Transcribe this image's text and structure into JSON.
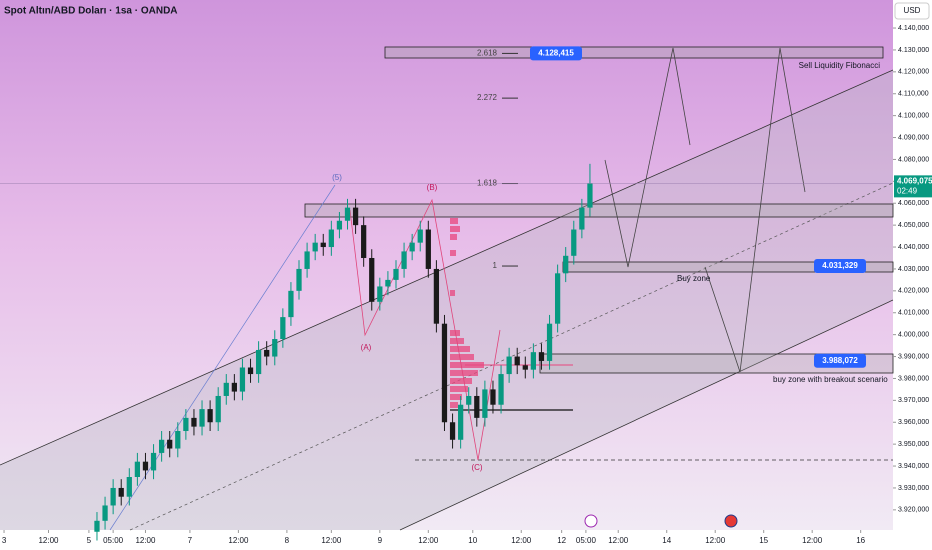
{
  "chart_data": {
    "type": "candlestick",
    "title": "Spot Altın/ABD Doları · 1sa · OANDA",
    "currency": "USD",
    "up_color": "#089981",
    "down_color": "#1a1a1a",
    "xlim": [
      0,
      221
    ],
    "ylim": [
      3910800,
      4152800
    ],
    "xticks": [
      {
        "value": 1,
        "label": "3"
      },
      {
        "value": 12,
        "label": "12:00"
      },
      {
        "value": 22,
        "label": "5"
      },
      {
        "value": 28,
        "label": "05:00"
      },
      {
        "value": 36,
        "label": "12:00"
      },
      {
        "value": 47,
        "label": "7"
      },
      {
        "value": 59,
        "label": "12:00"
      },
      {
        "value": 71,
        "label": "8"
      },
      {
        "value": 82,
        "label": "12:00"
      },
      {
        "value": 94,
        "label": "9"
      },
      {
        "value": 106,
        "label": "12:00"
      },
      {
        "value": 117,
        "label": "10"
      },
      {
        "value": 129,
        "label": "12:00"
      },
      {
        "value": 139,
        "label": "12"
      },
      {
        "value": 145,
        "label": "05:00"
      },
      {
        "value": 153,
        "label": "12:00"
      },
      {
        "value": 165,
        "label": "14"
      },
      {
        "value": 177,
        "label": "12:00"
      },
      {
        "value": 189,
        "label": "15"
      },
      {
        "value": 201,
        "label": "12:00"
      },
      {
        "value": 213,
        "label": "16"
      }
    ],
    "yticks": [
      {
        "value": 4140000,
        "label": "4.140,000"
      },
      {
        "value": 4130000,
        "label": "4.130,000"
      },
      {
        "value": 4120000,
        "label": "4.120,000"
      },
      {
        "value": 4110000,
        "label": "4.110,000"
      },
      {
        "value": 4100000,
        "label": "4.100,000"
      },
      {
        "value": 4090000,
        "label": "4.090,000"
      },
      {
        "value": 4080000,
        "label": "4.080,000"
      },
      {
        "value": 4070000,
        "label": "4.070,000"
      },
      {
        "value": 4060000,
        "label": "4.060,000"
      },
      {
        "value": 4050000,
        "label": "4.050,000"
      },
      {
        "value": 4040000,
        "label": "4.040,000"
      },
      {
        "value": 4030000,
        "label": "4.030,000"
      },
      {
        "value": 4020000,
        "label": "4.020,000"
      },
      {
        "value": 4010000,
        "label": "4.010,000"
      },
      {
        "value": 4000000,
        "label": "4.000,000"
      },
      {
        "value": 3990000,
        "label": "3.990,000"
      },
      {
        "value": 3980000,
        "label": "3.980,000"
      },
      {
        "value": 3970000,
        "label": "3.970,000"
      },
      {
        "value": 3960000,
        "label": "3.960,000"
      },
      {
        "value": 3950000,
        "label": "3.950,000"
      },
      {
        "value": 3940000,
        "label": "3.940,000"
      },
      {
        "value": 3930000,
        "label": "3.930,000"
      },
      {
        "value": 3920000,
        "label": "3.920,000"
      }
    ],
    "last_price": {
      "value": 4069075,
      "label": "4.069,075"
    },
    "countdown": "02:49",
    "price_tags": [
      {
        "value": 4128415,
        "label": "4.128,415"
      },
      {
        "value": 4031329,
        "label": "4.031,329"
      },
      {
        "value": 3988072,
        "label": "3.988,072"
      }
    ],
    "fib_levels": [
      {
        "value": 4128415,
        "label": "2.618"
      },
      {
        "value": 4108000,
        "label": "2.272"
      },
      {
        "value": 4069000,
        "label": "1.618"
      },
      {
        "value": 4031329,
        "label": "1"
      }
    ],
    "annotations": {
      "wave5": "(5)",
      "waveB": "(B)",
      "waveA": "(A)",
      "waveC": "(C)",
      "sell": "Sell Liquidity Fibonacci",
      "buy": "Buy zone",
      "breakout": "buy zone with breakout scenario"
    },
    "x": [
      24,
      26,
      28,
      30,
      32,
      34,
      36,
      38,
      40,
      42,
      44,
      46,
      48,
      50,
      52,
      54,
      56,
      58,
      60,
      62,
      64,
      66,
      68,
      70,
      72,
      74,
      76,
      78,
      80,
      82,
      84,
      86,
      88,
      90,
      92,
      94,
      96,
      98,
      100,
      102,
      104,
      106,
      108,
      110,
      112,
      114,
      116,
      118,
      120,
      122,
      124,
      126,
      128,
      130,
      132,
      134,
      136,
      138,
      140,
      142,
      144,
      146
    ],
    "ohlc": [
      [
        3910000,
        3919000,
        3906000,
        3915000
      ],
      [
        3915000,
        3926000,
        3911000,
        3922000
      ],
      [
        3922000,
        3934000,
        3918000,
        3930000
      ],
      [
        3930000,
        3934000,
        3922000,
        3926000
      ],
      [
        3926000,
        3939000,
        3922000,
        3935000
      ],
      [
        3935000,
        3946000,
        3931000,
        3942000
      ],
      [
        3942000,
        3946000,
        3934000,
        3938000
      ],
      [
        3938000,
        3950000,
        3934000,
        3946000
      ],
      [
        3946000,
        3956000,
        3942000,
        3952000
      ],
      [
        3952000,
        3956000,
        3944000,
        3948000
      ],
      [
        3948000,
        3960000,
        3944000,
        3956000
      ],
      [
        3956000,
        3966000,
        3952000,
        3962000
      ],
      [
        3962000,
        3966000,
        3954000,
        3958000
      ],
      [
        3958000,
        3970000,
        3954000,
        3966000
      ],
      [
        3966000,
        3970000,
        3956000,
        3960000
      ],
      [
        3960000,
        3976000,
        3956000,
        3972000
      ],
      [
        3972000,
        3982000,
        3968000,
        3978000
      ],
      [
        3978000,
        3982000,
        3970000,
        3974000
      ],
      [
        3974000,
        3989000,
        3970000,
        3985000
      ],
      [
        3985000,
        3989000,
        3978000,
        3982000
      ],
      [
        3982000,
        3997000,
        3978000,
        3993000
      ],
      [
        3993000,
        3997000,
        3986000,
        3990000
      ],
      [
        3990000,
        4002000,
        3986000,
        3998000
      ],
      [
        3998000,
        4012000,
        3994000,
        4008000
      ],
      [
        4008000,
        4024000,
        4004000,
        4020000
      ],
      [
        4020000,
        4034000,
        4016000,
        4030000
      ],
      [
        4030000,
        4042000,
        4026000,
        4038000
      ],
      [
        4038000,
        4046000,
        4034000,
        4042000
      ],
      [
        4042000,
        4046000,
        4036000,
        4040000
      ],
      [
        4040000,
        4052000,
        4036000,
        4048000
      ],
      [
        4048000,
        4056000,
        4044000,
        4052000
      ],
      [
        4052000,
        4062000,
        4048000,
        4058000
      ],
      [
        4058000,
        4062000,
        4046000,
        4050000
      ],
      [
        4050000,
        4054000,
        4031000,
        4035000
      ],
      [
        4035000,
        4039000,
        4011000,
        4015000
      ],
      [
        4015000,
        4026000,
        4011000,
        4022000
      ],
      [
        4022000,
        4029000,
        4018000,
        4025000
      ],
      [
        4025000,
        4034000,
        4021000,
        4030000
      ],
      [
        4030000,
        4042000,
        4026000,
        4038000
      ],
      [
        4038000,
        4046000,
        4034000,
        4042000
      ],
      [
        4042000,
        4052000,
        4038000,
        4048000
      ],
      [
        4048000,
        4052000,
        4026000,
        4030000
      ],
      [
        4030000,
        4034000,
        4001000,
        4005000
      ],
      [
        4005000,
        4009000,
        3956000,
        3960000
      ],
      [
        3960000,
        3964000,
        3948000,
        3952000
      ],
      [
        3952000,
        3972000,
        3948000,
        3968000
      ],
      [
        3968000,
        3976000,
        3964000,
        3972000
      ],
      [
        3972000,
        3976000,
        3958000,
        3962000
      ],
      [
        3962000,
        3979000,
        3958000,
        3975000
      ],
      [
        3975000,
        3979000,
        3964000,
        3968000
      ],
      [
        3968000,
        3986000,
        3964000,
        3982000
      ],
      [
        3982000,
        3994000,
        3978000,
        3990000
      ],
      [
        3990000,
        3994000,
        3982000,
        3986000
      ],
      [
        3986000,
        3990000,
        3980000,
        3984000
      ],
      [
        3984000,
        3996000,
        3980000,
        3992000
      ],
      [
        3992000,
        3996000,
        3984000,
        3988000
      ],
      [
        3988000,
        4009000,
        3984000,
        4005000
      ],
      [
        4005000,
        4032000,
        4001000,
        4028000
      ],
      [
        4028000,
        4040000,
        4024000,
        4036000
      ],
      [
        4036000,
        4052000,
        4032000,
        4048000
      ],
      [
        4048000,
        4062000,
        4044000,
        4058000
      ],
      [
        4058000,
        4078000,
        4054000,
        4069075
      ]
    ]
  }
}
